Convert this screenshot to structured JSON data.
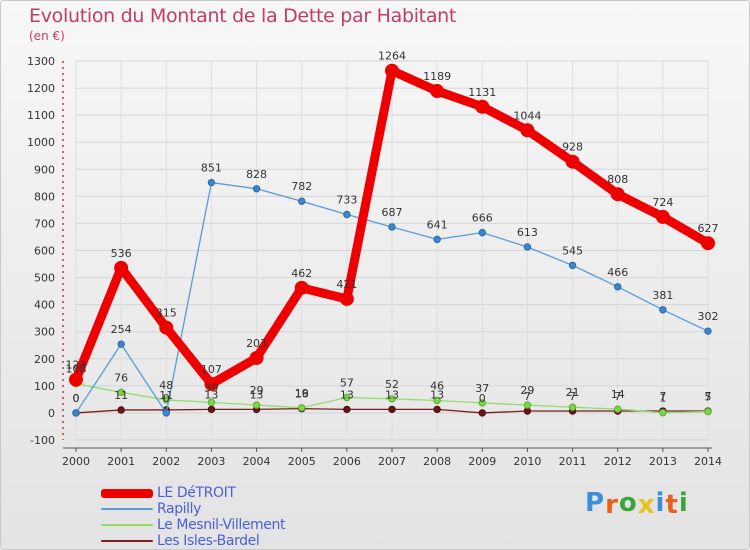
{
  "chart_data": {
    "type": "line",
    "title": "Evolution du Montant de la Dette par Habitant",
    "subtitle": "(en €)",
    "xlabel": "",
    "ylabel": "",
    "ylim": [
      -100,
      1300
    ],
    "yticks": [
      -100,
      0,
      100,
      200,
      300,
      400,
      500,
      600,
      700,
      800,
      900,
      1000,
      1100,
      1200,
      1300
    ],
    "x": [
      "2000",
      "2001",
      "2002",
      "2003",
      "2004",
      "2005",
      "2006",
      "2007",
      "2008",
      "2009",
      "2010",
      "2011",
      "2012",
      "2013",
      "2014"
    ],
    "series": [
      {
        "name": "LE DéTROIT",
        "color": "#ee0000",
        "values": [
          123,
          536,
          315,
          107,
          203,
          462,
          421,
          1264,
          1189,
          1131,
          1044,
          928,
          808,
          724,
          627
        ],
        "labels": [
          "123",
          "536",
          "315",
          "107",
          "203",
          "462",
          "421",
          "1264",
          "1189",
          "1131",
          "1044",
          "928",
          "808",
          "724",
          "627"
        ]
      },
      {
        "name": "Rapilly",
        "color": "#5a9bd8",
        "values": [
          0,
          254,
          0,
          851,
          828,
          782,
          733,
          687,
          641,
          666,
          613,
          545,
          466,
          381,
          302
        ],
        "labels": [
          "0",
          "254",
          "0",
          "851",
          "828",
          "782",
          "733",
          "687",
          "641",
          "666",
          "613",
          "545",
          "466",
          "381",
          "302"
        ]
      },
      {
        "name": "Le Mesnil-Villement",
        "color": "#90dd6a",
        "values": [
          108,
          76,
          48,
          39,
          29,
          19,
          57,
          52,
          46,
          37,
          29,
          21,
          14,
          1,
          5
        ],
        "labels": [
          "108",
          "76",
          "48",
          "39",
          "29",
          "19",
          "57",
          "52",
          "46",
          "37",
          "29",
          "21",
          "14",
          "1",
          "5"
        ]
      },
      {
        "name": "Les Isles-Bardel",
        "color": "#7a1f1f",
        "values": [
          0,
          11,
          11,
          13,
          13,
          16,
          13,
          13,
          13,
          0,
          7,
          7,
          7,
          7,
          7
        ],
        "labels": [
          "0",
          "11",
          "11",
          "13",
          "13",
          "16",
          "13",
          "13",
          "13",
          "0",
          "7",
          "7",
          "7",
          "7",
          "7"
        ]
      }
    ],
    "legend_position": "bottom-left"
  },
  "logo": {
    "text": "Proxiti",
    "colors": [
      "#3a8fd6",
      "#e8601c",
      "#3aa63a",
      "#e8c21c",
      "#3a8fd6",
      "#e8601c",
      "#3aa63a"
    ]
  }
}
